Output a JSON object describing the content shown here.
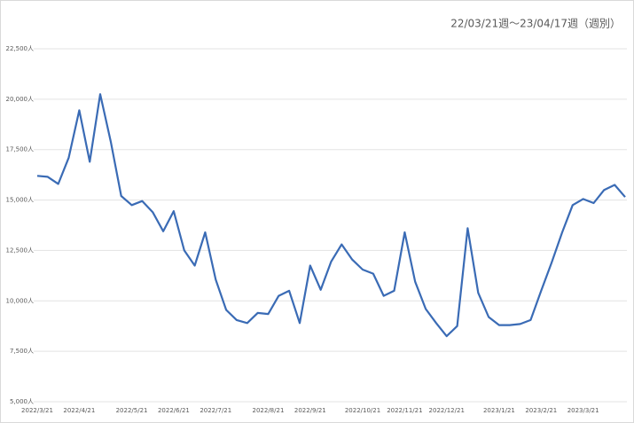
{
  "chart_data": {
    "type": "line",
    "title": "22/03/21週～23/04/17週（週別）",
    "categories": [
      "2022/3/21",
      null,
      null,
      null,
      "2022/4/21",
      null,
      null,
      null,
      null,
      "2022/5/21",
      null,
      null,
      null,
      "2022/6/21",
      null,
      null,
      null,
      "2022/7/21",
      null,
      null,
      null,
      null,
      "2022/8/21",
      null,
      null,
      null,
      "2022/9/21",
      null,
      null,
      null,
      null,
      "2022/10/21",
      null,
      null,
      null,
      "2022/11/21",
      null,
      null,
      null,
      "2022/12/21",
      null,
      null,
      null,
      null,
      "2023/1/21",
      null,
      null,
      null,
      "2023/2/21",
      null,
      null,
      null,
      "2023/3/21",
      null,
      null,
      null,
      null
    ],
    "series": [
      {
        "color": "#3a6bb5",
        "values": [
          16200,
          16150,
          15800,
          17100,
          19450,
          16900,
          20250,
          17900,
          15200,
          14750,
          14950,
          14400,
          13450,
          14450,
          12500,
          11750,
          13400,
          11050,
          9550,
          9050,
          8900,
          9400,
          9350,
          10250,
          10500,
          8900,
          11750,
          10550,
          11950,
          12800,
          12050,
          11550,
          11350,
          10250,
          10500,
          13400,
          10950,
          9600,
          8900,
          8250,
          8750,
          13600,
          10400,
          9200,
          8800,
          8800,
          8850,
          9050,
          10500,
          11900,
          13400,
          14750,
          15050,
          14850,
          15500,
          15750,
          15150
        ]
      }
    ],
    "ylim": [
      5000,
      22500
    ],
    "yticks": [
      {
        "value": 5000,
        "label": "5,000人"
      },
      {
        "value": 7500,
        "label": "7,500人"
      },
      {
        "value": 10000,
        "label": "10,000人"
      },
      {
        "value": 12500,
        "label": "12,500人"
      },
      {
        "value": 15000,
        "label": "15,000人"
      },
      {
        "value": 17500,
        "label": "17,500人"
      },
      {
        "value": 20000,
        "label": "20,000人"
      },
      {
        "value": 22500,
        "label": "22,500人"
      }
    ],
    "grid": true
  }
}
